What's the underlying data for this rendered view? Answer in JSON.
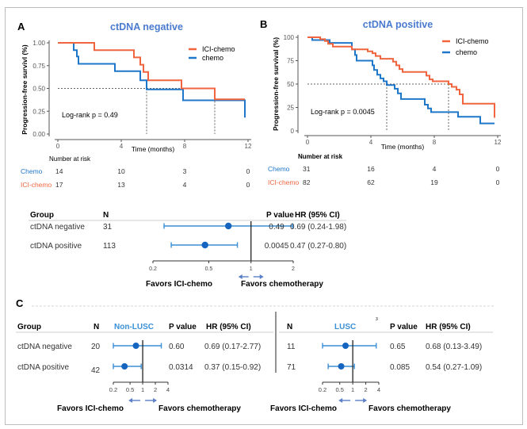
{
  "figure": {
    "panels": {
      "A": {
        "letter": "A"
      },
      "B": {
        "letter": "B"
      },
      "C": {
        "letter": "C"
      }
    },
    "colors": {
      "ici_chemo": "#f0643f",
      "chemo": "#1f77c9",
      "title_blue": "#4a7bd0",
      "ci_blue": "#3a8fd6",
      "point_blue": "#1565c0",
      "arrow_blue": "#5b7fc8"
    }
  },
  "chart_data": [
    {
      "id": "km-a",
      "type": "line",
      "title": "ctDNA negative",
      "xlabel": "Time (months)",
      "ylabel": "Progression-free survivl (%)",
      "xlim": [
        0,
        12
      ],
      "ylim": [
        0,
        1
      ],
      "xticks": [
        0,
        4,
        8,
        12
      ],
      "yticks": [
        0,
        0.25,
        0.5,
        0.75,
        1.0
      ],
      "ytick_labels": [
        "0.00",
        "0.25",
        "0.50",
        "0.75",
        "1.00"
      ],
      "legend": [
        "ICI-chemo",
        "chemo"
      ],
      "legend_position": "top-right",
      "annotation": "Log-rank p = 0.49",
      "median_lines": {
        "y": 0.5,
        "x": [
          5.6,
          9.9
        ]
      },
      "series": [
        {
          "name": "ICI-chemo",
          "steps": [
            [
              0,
              1.0
            ],
            [
              2.3,
              1.0
            ],
            [
              2.3,
              0.92
            ],
            [
              4.8,
              0.92
            ],
            [
              4.8,
              0.84
            ],
            [
              5.2,
              0.84
            ],
            [
              5.2,
              0.76
            ],
            [
              5.4,
              0.76
            ],
            [
              5.4,
              0.68
            ],
            [
              5.7,
              0.68
            ],
            [
              5.7,
              0.59
            ],
            [
              7.8,
              0.59
            ],
            [
              7.8,
              0.5
            ],
            [
              9.9,
              0.5
            ],
            [
              9.9,
              0.38
            ],
            [
              11.8,
              0.38
            ]
          ]
        },
        {
          "name": "chemo",
          "steps": [
            [
              0,
              1.0
            ],
            [
              1.0,
              1.0
            ],
            [
              1.0,
              0.92
            ],
            [
              1.2,
              0.92
            ],
            [
              1.2,
              0.85
            ],
            [
              1.3,
              0.85
            ],
            [
              1.3,
              0.77
            ],
            [
              3.6,
              0.77
            ],
            [
              3.6,
              0.69
            ],
            [
              5.2,
              0.69
            ],
            [
              5.2,
              0.59
            ],
            [
              5.6,
              0.59
            ],
            [
              5.6,
              0.49
            ],
            [
              7.9,
              0.49
            ],
            [
              7.9,
              0.37
            ],
            [
              11.8,
              0.37
            ],
            [
              11.8,
              0.18
            ]
          ]
        }
      ],
      "risk_table": {
        "title": "Number at risk",
        "times": [
          0,
          4,
          8,
          12
        ],
        "rows": [
          {
            "label": "Chemo",
            "values": [
              "14",
              "10",
              "3",
              "0"
            ]
          },
          {
            "label": "ICI-chemo",
            "values": [
              "17",
              "13",
              "4",
              "0"
            ]
          }
        ]
      }
    },
    {
      "id": "km-b",
      "type": "line",
      "title": "ctDNA positive",
      "xlabel": "Time (months)",
      "ylabel": "Progression-free survival (%)",
      "xlim": [
        0,
        12
      ],
      "ylim": [
        0,
        100
      ],
      "xticks": [
        0,
        4,
        8,
        12
      ],
      "yticks": [
        0,
        25,
        50,
        75,
        100
      ],
      "ytick_labels": [
        "0",
        "25",
        "50",
        "75",
        "100"
      ],
      "legend": [
        "ICI-chemo",
        "chemo"
      ],
      "legend_position": "top-right",
      "annotation": "Log-rank p = 0.0045",
      "median_lines": {
        "y": 50,
        "x": [
          5.0,
          8.9
        ]
      },
      "series": [
        {
          "name": "ICI-chemo",
          "steps": [
            [
              0,
              100
            ],
            [
              0.8,
              100
            ],
            [
              0.8,
              98
            ],
            [
              1.1,
              98
            ],
            [
              1.1,
              96
            ],
            [
              1.3,
              96
            ],
            [
              1.3,
              93
            ],
            [
              1.6,
              93
            ],
            [
              1.6,
              90
            ],
            [
              2.8,
              90
            ],
            [
              2.8,
              87
            ],
            [
              3.8,
              87
            ],
            [
              3.8,
              85
            ],
            [
              4.1,
              85
            ],
            [
              4.1,
              83
            ],
            [
              4.3,
              83
            ],
            [
              4.3,
              80
            ],
            [
              4.6,
              80
            ],
            [
              4.6,
              77
            ],
            [
              5.4,
              77
            ],
            [
              5.4,
              74
            ],
            [
              5.6,
              74
            ],
            [
              5.6,
              70
            ],
            [
              5.8,
              70
            ],
            [
              5.8,
              66
            ],
            [
              6.0,
              66
            ],
            [
              6.0,
              63
            ],
            [
              7.5,
              63
            ],
            [
              7.5,
              59
            ],
            [
              7.7,
              59
            ],
            [
              7.7,
              55
            ],
            [
              7.9,
              55
            ],
            [
              7.9,
              53
            ],
            [
              8.9,
              53
            ],
            [
              8.9,
              50
            ],
            [
              9.1,
              50
            ],
            [
              9.1,
              47
            ],
            [
              9.4,
              47
            ],
            [
              9.4,
              44
            ],
            [
              9.6,
              44
            ],
            [
              9.6,
              39
            ],
            [
              9.8,
              39
            ],
            [
              9.8,
              29
            ],
            [
              11.8,
              29
            ],
            [
              11.8,
              14
            ]
          ]
        },
        {
          "name": "chemo",
          "steps": [
            [
              0,
              100
            ],
            [
              0.3,
              100
            ],
            [
              0.3,
              97
            ],
            [
              1.4,
              97
            ],
            [
              1.4,
              94
            ],
            [
              2.8,
              94
            ],
            [
              2.8,
              87
            ],
            [
              3.0,
              87
            ],
            [
              3.0,
              81
            ],
            [
              3.1,
              81
            ],
            [
              3.1,
              75
            ],
            [
              4.1,
              75
            ],
            [
              4.1,
              70
            ],
            [
              4.2,
              70
            ],
            [
              4.2,
              65
            ],
            [
              4.4,
              65
            ],
            [
              4.4,
              60
            ],
            [
              4.6,
              60
            ],
            [
              4.6,
              56
            ],
            [
              4.8,
              56
            ],
            [
              4.8,
              53
            ],
            [
              5.0,
              53
            ],
            [
              5.0,
              49
            ],
            [
              5.5,
              49
            ],
            [
              5.5,
              45
            ],
            [
              5.7,
              45
            ],
            [
              5.7,
              40
            ],
            [
              5.9,
              40
            ],
            [
              5.9,
              34
            ],
            [
              7.4,
              34
            ],
            [
              7.4,
              28
            ],
            [
              7.6,
              28
            ],
            [
              7.6,
              24
            ],
            [
              7.8,
              24
            ],
            [
              7.8,
              20
            ],
            [
              9.5,
              20
            ],
            [
              9.5,
              15
            ],
            [
              10.9,
              15
            ],
            [
              10.9,
              8
            ],
            [
              11.8,
              8
            ]
          ]
        }
      ],
      "risk_table": {
        "title": "Number at risk",
        "times": [
          0,
          4,
          8,
          12
        ],
        "rows": [
          {
            "label": "Chemo",
            "values": [
              "31",
              "16",
              "4",
              "0"
            ]
          },
          {
            "label": "ICI-chemo",
            "values": [
              "82",
              "62",
              "19",
              "0"
            ]
          }
        ]
      }
    },
    {
      "id": "forest-b",
      "type": "scatter",
      "scale": "log",
      "xticks": [
        0.2,
        0.5,
        1,
        2
      ],
      "xtick_labels": [
        "0.2",
        "0.5",
        "1",
        "2"
      ],
      "xlim": [
        0.2,
        2
      ],
      "reference": 1,
      "headers": {
        "group": "Group",
        "n": "N",
        "p": "P value",
        "hr": "HR (95% CI)"
      },
      "rows": [
        {
          "group": "ctDNA negative",
          "n": "31",
          "hr": 0.69,
          "lo": 0.24,
          "hi": 1.98,
          "p": "0.49",
          "hr_text": "0.69 (0.24-1.98)"
        },
        {
          "group": "ctDNA positive",
          "n": "113",
          "hr": 0.47,
          "lo": 0.27,
          "hi": 0.8,
          "p": "0.0045",
          "hr_text": "0.47 (0.27-0.80)"
        }
      ],
      "favors_left": "Favors ICI-chemo",
      "favors_right": "Favors chemotherapy"
    },
    {
      "id": "forest-c-nonlusc",
      "type": "scatter",
      "scale": "log",
      "title": "Non-LUSC",
      "xticks": [
        0.2,
        0.5,
        1,
        2,
        4
      ],
      "xtick_labels": [
        "0.2",
        "0.5",
        "1",
        "2",
        "4"
      ],
      "xlim": [
        0.2,
        4
      ],
      "reference": 1,
      "headers": {
        "group": "Group",
        "n": "N",
        "p": "P value",
        "hr": "HR (95% CI)"
      },
      "rows": [
        {
          "group": "ctDNA negative",
          "n": "20",
          "hr": 0.69,
          "lo": 0.17,
          "hi": 2.77,
          "p": "0.60",
          "hr_text": "0.69 (0.17-2.77)"
        },
        {
          "group": "ctDNA positive",
          "n": "42",
          "hr": 0.37,
          "lo": 0.15,
          "hi": 0.92,
          "p": "0.0314",
          "hr_text": "0.37 (0.15-0.92)"
        }
      ],
      "favors_left": "Favors ICI-chemo",
      "favors_right": "Favors chemotherapy"
    },
    {
      "id": "forest-c-lusc",
      "type": "scatter",
      "scale": "log",
      "title": "LUSC",
      "superscript": "3",
      "xticks": [
        0.2,
        0.5,
        1,
        2,
        4
      ],
      "xtick_labels": [
        "0.2",
        "0.5",
        "1",
        "2",
        "4"
      ],
      "xlim": [
        0.2,
        4
      ],
      "reference": 1,
      "headers": {
        "n": "N",
        "p": "P value",
        "hr": "HR (95% CI)"
      },
      "rows": [
        {
          "n": "11",
          "hr": 0.68,
          "lo": 0.13,
          "hi": 3.49,
          "p": "0.65",
          "hr_text": "0.68 (0.13-3.49)"
        },
        {
          "n": "71",
          "hr": 0.54,
          "lo": 0.27,
          "hi": 1.09,
          "p": "0.085",
          "hr_text": "0.54 (0.27-1.09)"
        }
      ],
      "favors_left": "Favors ICI-chemo",
      "favors_right": "Favors chemotherapy"
    }
  ]
}
